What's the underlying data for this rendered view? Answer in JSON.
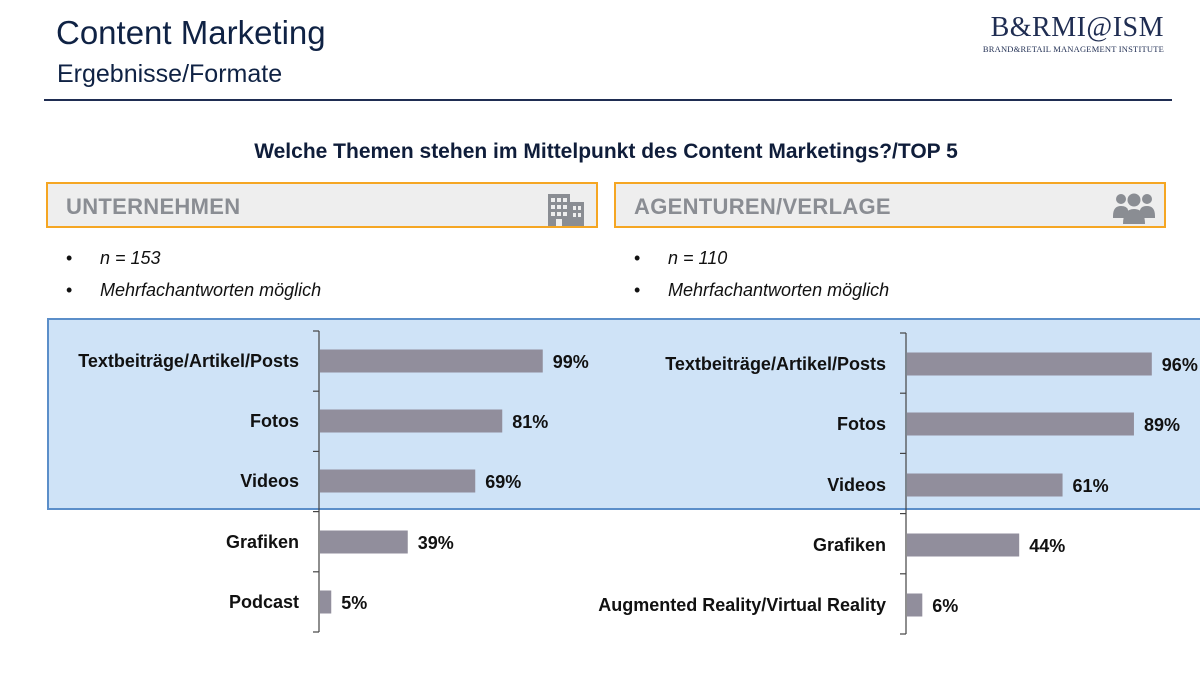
{
  "header": {
    "title": "Content Marketing",
    "subtitle": "Ergebnisse/Formate",
    "logo_main": "B&RMI@ISM",
    "logo_sub": "BRAND&RETAIL MANAGEMENT INSTITUTE"
  },
  "question": "Welche Themen stehen im Mittelpunkt des Content Marketings?/TOP 5",
  "panels": {
    "left": {
      "label": "UNTERNEHMEN",
      "icon": "building-icon",
      "bullets": [
        "n = 153",
        "Mehrfachantworten möglich"
      ]
    },
    "right": {
      "label": "AGENTUREN/VERLAGE",
      "icon": "group-icon",
      "bullets": [
        "n = 110",
        "Mehrfachantworten möglich"
      ]
    }
  },
  "colors": {
    "bar": "#918e9c",
    "highlight": "#cfe3f7",
    "highlight_border": "#5b8ec9",
    "header_border": "#f5a623"
  },
  "chart_data": [
    {
      "type": "bar",
      "orientation": "horizontal",
      "title": "UNTERNEHMEN",
      "categories": [
        "Textbeiträge/Artikel/Posts",
        "Fotos",
        "Videos",
        "Grafiken",
        "Podcast"
      ],
      "values": [
        99,
        81,
        69,
        39,
        5
      ],
      "value_labels": [
        "99%",
        "81%",
        "69%",
        "39%",
        "5%"
      ],
      "unit": "%",
      "xlim": [
        0,
        100
      ],
      "highlighted_top": 3
    },
    {
      "type": "bar",
      "orientation": "horizontal",
      "title": "AGENTUREN/VERLAGE",
      "categories": [
        "Textbeiträge/Artikel/Posts",
        "Fotos",
        "Videos",
        "Grafiken",
        "Augmented Reality/Virtual Reality"
      ],
      "values": [
        96,
        89,
        61,
        44,
        6
      ],
      "value_labels": [
        "96%",
        "89%",
        "61%",
        "44%",
        "6%"
      ],
      "unit": "%",
      "xlim": [
        0,
        100
      ],
      "highlighted_top": 3
    }
  ]
}
